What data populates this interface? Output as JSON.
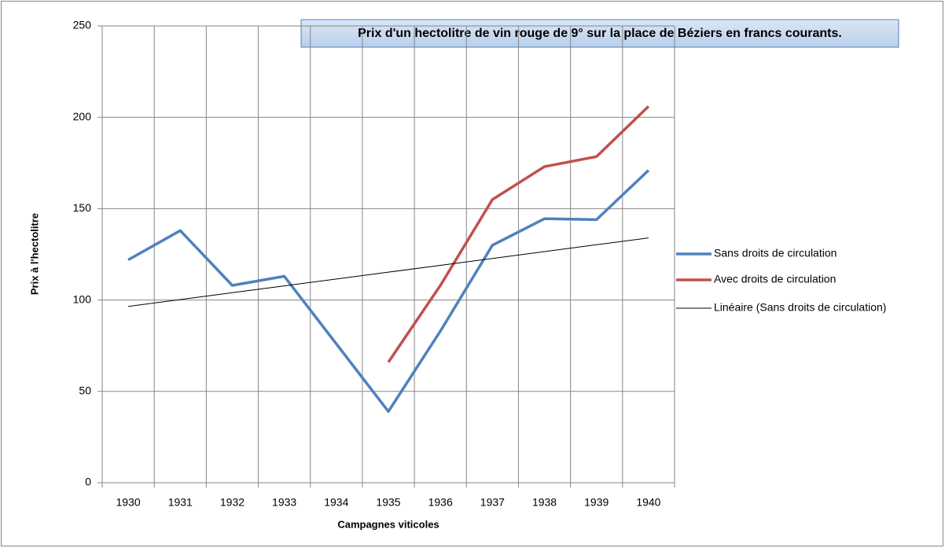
{
  "chart_data": {
    "type": "line",
    "title": "Prix d'un hectolitre de vin rouge de 9° sur la place de Béziers en francs courants.",
    "x_label": "Campagnes viticoles",
    "y_label": "Prix à l'hectolitre",
    "categories": [
      "1930",
      "1931",
      "1932",
      "1933",
      "1934",
      "1935",
      "1936",
      "1937",
      "1938",
      "1939",
      "1940"
    ],
    "series": [
      {
        "name": "Sans droits de circulation",
        "color": "#4f81bd",
        "line_width": 3.5,
        "values": [
          122,
          138,
          108,
          113,
          76,
          39,
          83,
          130,
          144.5,
          144,
          171
        ]
      },
      {
        "name": "Avec droits de circulation",
        "color": "#c0504d",
        "line_width": 3.5,
        "values": [
          null,
          null,
          null,
          null,
          null,
          66,
          108,
          155,
          173,
          178.5,
          206
        ]
      },
      {
        "name": "Linéaire (Sans droits de circulation)",
        "color": "#000000",
        "line_width": 1,
        "values": [
          96.5,
          100.25,
          104,
          107.75,
          111.5,
          115.25,
          119,
          122.75,
          126.5,
          130.25,
          134
        ]
      }
    ],
    "ylim": [
      0,
      250
    ],
    "yticks": [
      0,
      50,
      100,
      150,
      200,
      250
    ],
    "grid": true,
    "legend": "right"
  }
}
